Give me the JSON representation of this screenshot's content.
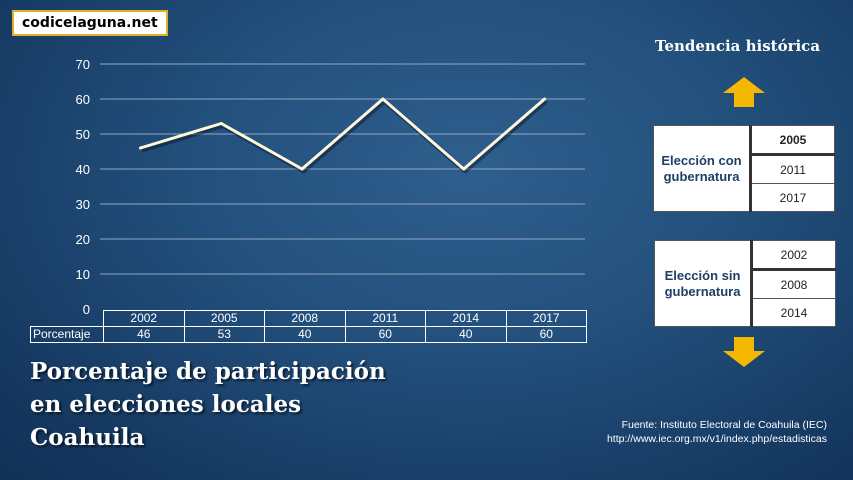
{
  "site": "codicelaguna.net",
  "chart_data": {
    "type": "line",
    "x": [
      "2002",
      "2005",
      "2008",
      "2011",
      "2014",
      "2017"
    ],
    "values": [
      46,
      53,
      40,
      60,
      40,
      60
    ],
    "row_label": "Porcentaje",
    "ylim": [
      0,
      70
    ],
    "yticks": [
      0,
      10,
      20,
      30,
      40,
      50,
      60,
      70
    ],
    "line_color": "#fff8dc",
    "grid": true
  },
  "trend": {
    "title": "Tendencia histórica",
    "arrow_color": "#f5b800"
  },
  "con_gubernatura": {
    "label": "Elección con gubernatura",
    "years": [
      "2005",
      "2011",
      "2017"
    ]
  },
  "sin_gubernatura": {
    "label": "Elección sin gubernatura",
    "years": [
      "2002",
      "2008",
      "2014"
    ]
  },
  "title": {
    "line1": "Porcentaje de participación",
    "line2": "en elecciones locales",
    "line3": "Coahuila"
  },
  "source": {
    "line1": "Fuente: Instituto Electoral de Coahuila (IEC)",
    "line2": "http://www.iec.org.mx/v1/index.php/estadisticas"
  }
}
